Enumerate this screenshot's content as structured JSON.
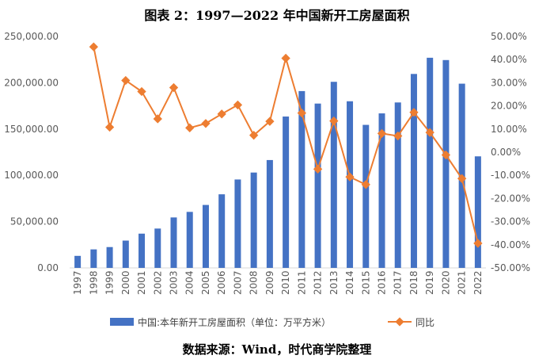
{
  "source": "数据来源：Wind，时代商学院整理",
  "chart_data": {
    "type": "bar+line",
    "title": "图表 2：1997—2022 年中国新开工房屋面积",
    "categories": [
      "1997",
      "1998",
      "1999",
      "2000",
      "2001",
      "2002",
      "2003",
      "2004",
      "2005",
      "2006",
      "2007",
      "2008",
      "2009",
      "2010",
      "2011",
      "2012",
      "2013",
      "2014",
      "2015",
      "2016",
      "2017",
      "2018",
      "2019",
      "2020",
      "2021",
      "2022"
    ],
    "series": [
      {
        "name": "中国:本年新开工房屋面积（单位：万平方米）",
        "type": "bar",
        "axis": "left",
        "color": "#4472C4",
        "values": [
          13000,
          20000,
          22500,
          29500,
          37000,
          42500,
          54500,
          60500,
          68000,
          79500,
          95500,
          103000,
          116500,
          163500,
          191000,
          177500,
          201000,
          180000,
          154500,
          166900,
          178700,
          209500,
          227000,
          224500,
          199000,
          120500
        ]
      },
      {
        "name": "同比",
        "type": "line",
        "axis": "right",
        "color": "#ED7D31",
        "values": [
          null,
          45.5,
          10.8,
          31.0,
          26.2,
          14.4,
          27.9,
          10.5,
          12.4,
          16.5,
          20.4,
          7.3,
          13.3,
          40.6,
          16.9,
          -7.3,
          13.5,
          -10.7,
          -14.0,
          8.1,
          7.0,
          17.2,
          8.5,
          -1.2,
          -11.4,
          -39.4
        ]
      }
    ],
    "y_left": {
      "min": 0,
      "max": 250000,
      "step": 50000,
      "tick_labels": [
        "0.00",
        "50,000.00",
        "100,000.00",
        "150,000.00",
        "200,000.00",
        "250,000.00"
      ]
    },
    "y_right": {
      "min": -50,
      "max": 50,
      "step": 10,
      "tick_labels": [
        "-50.00%",
        "-40.00%",
        "-30.00%",
        "-20.00%",
        "-10.00%",
        "0.00%",
        "10.00%",
        "20.00%",
        "30.00%",
        "40.00%",
        "50.00%"
      ]
    },
    "grid": false,
    "legend_position": "bottom"
  }
}
